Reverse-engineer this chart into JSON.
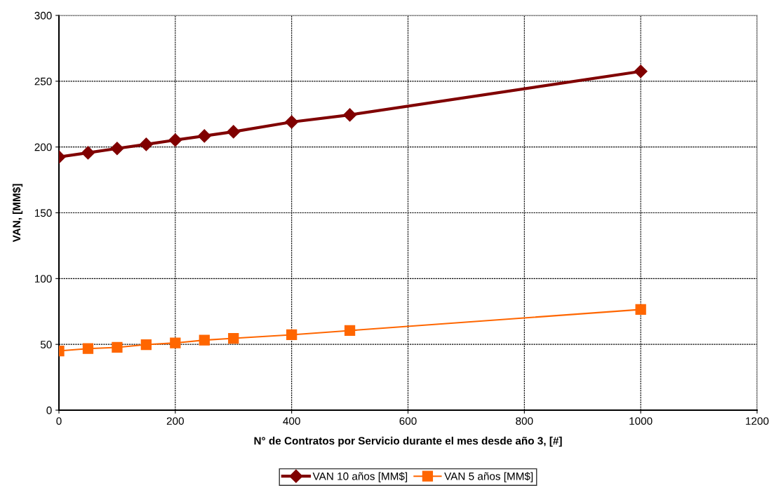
{
  "chart_data": {
    "type": "line",
    "xlabel": "N° de Contratos por Servicio durante el mes desde año 3, [#]",
    "ylabel": "VAN, [MM$]",
    "x": [
      0,
      50,
      100,
      150,
      200,
      250,
      300,
      400,
      500,
      1000
    ],
    "series": [
      {
        "name": "VAN 10 años [MM$]",
        "color": "#800000",
        "marker": "diamond",
        "values": [
          192.4,
          195.6,
          198.9,
          202,
          205.3,
          208.4,
          211.6,
          219,
          224.4,
          257.5
        ]
      },
      {
        "name": "VAN 5 años [MM$]",
        "color": "#ff6600",
        "marker": "square",
        "values": [
          45,
          46.8,
          47.7,
          49.8,
          51.1,
          53.2,
          54.6,
          57.3,
          60.5,
          76.5
        ]
      }
    ],
    "xlim": [
      0,
      1200
    ],
    "xticks": [
      0,
      200,
      400,
      600,
      800,
      1000,
      1200
    ],
    "ylim": [
      0,
      300
    ],
    "yticks": [
      0,
      50,
      100,
      150,
      200,
      250,
      300
    ],
    "grid": true,
    "legend": "bottom",
    "line_style": "solid"
  }
}
